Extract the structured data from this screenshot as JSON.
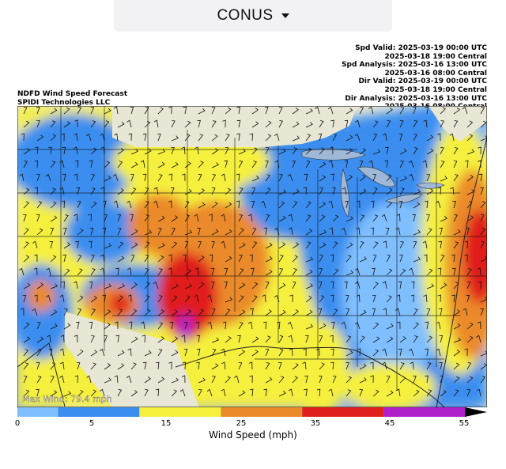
{
  "selector": {
    "label": "CONUS",
    "icon": "caret-down-icon"
  },
  "header": {
    "valid_lines": [
      "Spd Valid: 2025-03-19 00:00 UTC",
      "2025-03-18 19:00 Central",
      "Spd Analysis: 2025-03-16 13:00 UTC",
      "2025-03-16 08:00 Central",
      "Dir Valid: 2025-03-19 00:00 UTC",
      "2025-03-18 19:00 Central",
      "Dir Analysis: 2025-03-16 13:00 UTC",
      "2025-03-16 08:00 Central"
    ],
    "product_title": "NDFD Wind Speed Forecast",
    "provider": "SPIDI Technologies LLC"
  },
  "map": {
    "max_wind_label": "Max Wind: 79.4 mph",
    "land_color": "#e8e6d4",
    "water_color": "#9fb8d8"
  },
  "colorbar": {
    "title": "Wind Speed (mph)",
    "ticks": [
      "0",
      "5",
      "15",
      "25",
      "35",
      "45",
      "55"
    ],
    "bins": [
      {
        "from": 0,
        "to": 5,
        "color": "#7fbfff"
      },
      {
        "from": 5,
        "to": 15,
        "color": "#3a8ef0"
      },
      {
        "from": 15,
        "to": 25,
        "color": "#f5f03c"
      },
      {
        "from": 25,
        "to": 35,
        "color": "#eb8a2a"
      },
      {
        "from": 35,
        "to": 45,
        "color": "#e01e1e"
      },
      {
        "from": 45,
        "to": 55,
        "color": "#b020c8"
      },
      {
        "from": 55,
        "to": 60,
        "color": "#000000"
      }
    ]
  }
}
